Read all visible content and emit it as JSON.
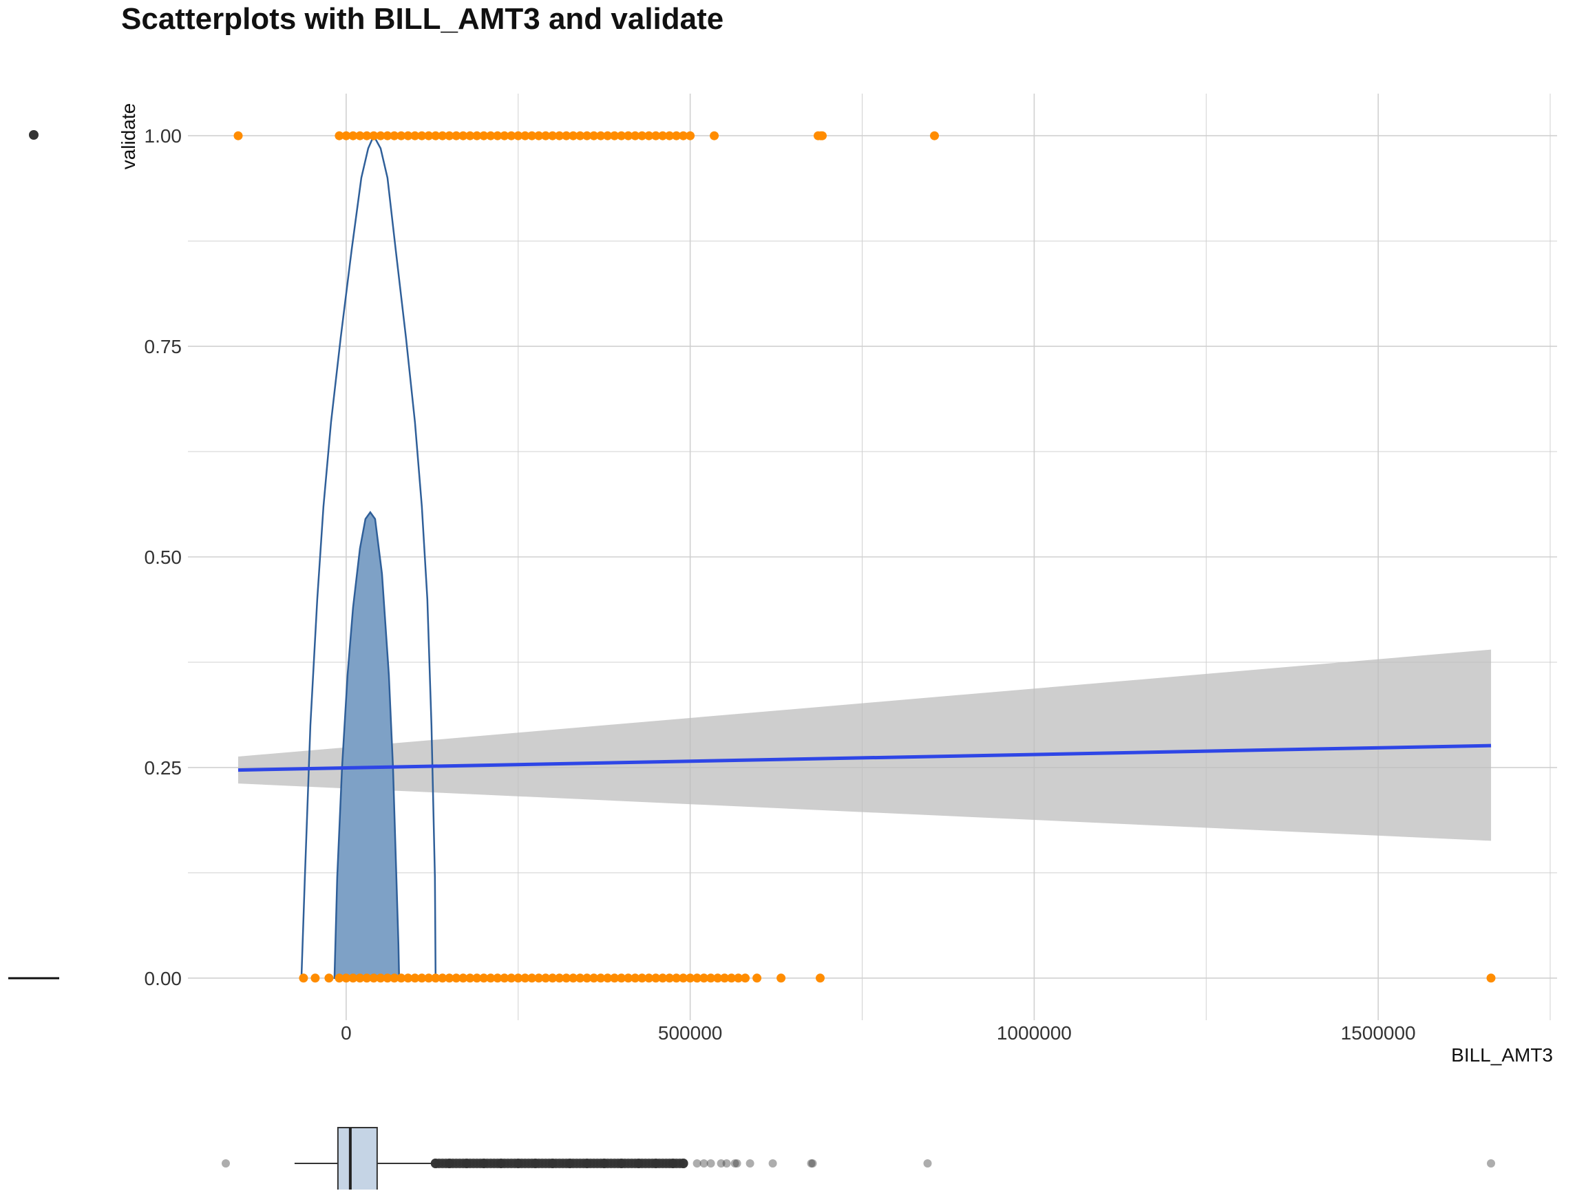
{
  "chart_data": {
    "type": "scatter",
    "title": "Scatterplots with BILL_AMT3 and validate",
    "xlabel": "BILL_AMT3",
    "ylabel": "validate",
    "xlim": [
      -230000,
      1760000
    ],
    "ylim": [
      -0.05,
      1.05
    ],
    "x_ticks": [
      {
        "value": 0,
        "label": "0"
      },
      {
        "value": 500000,
        "label": "500000"
      },
      {
        "value": 1000000,
        "label": "1000000"
      },
      {
        "value": 1500000,
        "label": "1500000"
      }
    ],
    "y_ticks": [
      {
        "value": 0,
        "label": "0.00"
      },
      {
        "value": 0.25,
        "label": "0.25"
      },
      {
        "value": 0.5,
        "label": "0.50"
      },
      {
        "value": 0.75,
        "label": "0.75"
      },
      {
        "value": 1,
        "label": "1.00"
      }
    ],
    "grid": true,
    "colors": {
      "points": "#FF8C00",
      "regression_line": "#2E46E6",
      "confidence_band": "#BDBDBD",
      "contour_outer_fill": "#C5D4E5",
      "contour_inner_fill": "#7EA1C6",
      "contour_stroke": "#2F5F99",
      "grid": "#D0D0D0",
      "boxplot_fill": "#C5D4E5",
      "outliers": "#333333"
    },
    "series": [
      {
        "kind": "points",
        "y": 1,
        "x": [
          -157000,
          -10000,
          0,
          10000,
          20000,
          30000,
          40000,
          50000,
          60000,
          70000,
          80000,
          90000,
          100000,
          110000,
          120000,
          130000,
          140000,
          150000,
          160000,
          170000,
          180000,
          190000,
          200000,
          210000,
          220000,
          230000,
          240000,
          250000,
          260000,
          270000,
          280000,
          290000,
          300000,
          310000,
          320000,
          330000,
          340000,
          350000,
          360000,
          370000,
          380000,
          390000,
          400000,
          410000,
          420000,
          430000,
          440000,
          450000,
          460000,
          470000,
          480000,
          490000,
          500000,
          535000,
          686000,
          690000,
          692000,
          855000
        ]
      },
      {
        "kind": "points",
        "y": 0,
        "x": [
          -62000,
          -45000,
          -25000,
          -10000,
          0,
          10000,
          20000,
          30000,
          40000,
          50000,
          60000,
          70000,
          80000,
          90000,
          100000,
          110000,
          120000,
          130000,
          140000,
          150000,
          160000,
          170000,
          180000,
          190000,
          200000,
          210000,
          220000,
          230000,
          240000,
          250000,
          260000,
          270000,
          280000,
          290000,
          300000,
          310000,
          320000,
          330000,
          340000,
          350000,
          360000,
          370000,
          380000,
          390000,
          400000,
          410000,
          420000,
          430000,
          440000,
          450000,
          460000,
          470000,
          480000,
          490000,
          500000,
          510000,
          520000,
          530000,
          540000,
          550000,
          560000,
          570000,
          580000,
          597000,
          632000,
          689000,
          1664000
        ]
      },
      {
        "kind": "regression",
        "x": [
          -157000,
          1664000
        ],
        "y": [
          0.247,
          0.276
        ],
        "ci_lower": [
          0.231,
          0.163
        ],
        "ci_upper": [
          0.263,
          0.39
        ]
      },
      {
        "kind": "contour-outer",
        "x": [
          -65000,
          -60000,
          -52000,
          -42000,
          -33000,
          -22000,
          -8000,
          8000,
          22000,
          32000,
          40000,
          50000,
          60000,
          72000,
          87000,
          100000,
          110000,
          118000,
          124000,
          129000,
          130000,
          130000,
          130000,
          129000,
          124000,
          118000,
          110000,
          100000,
          87000,
          72000,
          60000,
          50000,
          40000,
          32000,
          22000,
          8000,
          -8000,
          -22000,
          -33000,
          -42000,
          -52000,
          -60000,
          -65000
        ],
        "y": [
          0.0,
          0.12,
          0.3,
          0.45,
          0.56,
          0.66,
          0.76,
          0.865,
          0.95,
          0.985,
          1.0,
          0.985,
          0.95,
          0.865,
          0.76,
          0.66,
          0.56,
          0.45,
          0.3,
          0.12,
          0.0,
          0.0,
          0.0,
          0.12,
          0.3,
          0.45,
          0.56,
          0.66,
          0.76,
          0.865,
          0.95,
          0.985,
          1.0,
          0.985,
          0.95,
          0.865,
          0.76,
          0.66,
          0.56,
          0.45,
          0.3,
          0.12,
          0.0
        ]
      },
      {
        "kind": "contour-inner",
        "x": [
          -17000,
          -13000,
          -6000,
          2000,
          10000,
          20000,
          28000,
          35000,
          42000,
          52000,
          62000,
          68000,
          73000,
          76000,
          77000
        ],
        "y": [
          0.0,
          0.12,
          0.25,
          0.36,
          0.44,
          0.51,
          0.545,
          0.553,
          0.545,
          0.48,
          0.36,
          0.25,
          0.12,
          0.04,
          0.0
        ]
      }
    ],
    "boxplot": {
      "variable": "BILL_AMT3",
      "whisker_low": -75000,
      "q1": -12000,
      "median": 6000,
      "q3": 45000,
      "whisker_high": 128000,
      "outliers": [
        -175000,
        130000,
        150000,
        175000,
        200000,
        225000,
        250000,
        275000,
        300000,
        325000,
        350000,
        375000,
        400000,
        425000,
        450000,
        475000,
        490000,
        510000,
        520000,
        530000,
        545000,
        553000,
        565000,
        568000,
        587000,
        620000,
        676000,
        678000,
        845000,
        1664000
      ]
    },
    "legend_glyphs": {
      "point": true,
      "line": true
    }
  }
}
